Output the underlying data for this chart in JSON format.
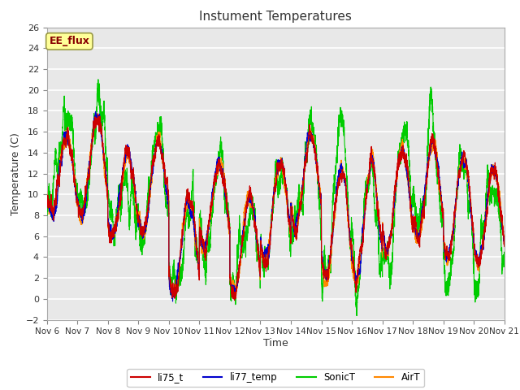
{
  "title": "Instument Temperatures",
  "xlabel": "Time",
  "ylabel": "Temperature (C)",
  "ylim": [
    -2,
    26
  ],
  "yticks": [
    -2,
    0,
    2,
    4,
    6,
    8,
    10,
    12,
    14,
    16,
    18,
    20,
    22,
    24,
    26
  ],
  "xtick_labels": [
    "Nov 6",
    "Nov 7",
    "Nov 8",
    "Nov 9",
    "Nov 10",
    "Nov 11",
    "Nov 12",
    "Nov 13",
    "Nov 14",
    "Nov 15",
    "Nov 16",
    "Nov 17",
    "Nov 18",
    "Nov 19",
    "Nov 20",
    "Nov 21"
  ],
  "series_colors": {
    "li75_t": "#cc0000",
    "li77_temp": "#0000cc",
    "SonicT": "#00cc00",
    "AirT": "#ff8800"
  },
  "watermark_text": "EE_flux",
  "watermark_bg": "#ffff99",
  "watermark_border": "#aaaaaa",
  "background_color": "#ffffff",
  "plot_bg": "#e8e8e8",
  "grid_color": "#ffffff",
  "n_days": 15,
  "points_per_day": 288,
  "title_fontsize": 11,
  "axis_label_fontsize": 9,
  "tick_fontsize": 8
}
